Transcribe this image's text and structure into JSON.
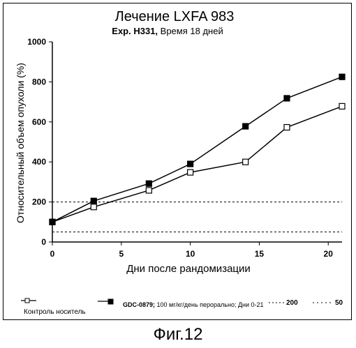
{
  "chart_data": {
    "type": "line",
    "title": "Лечение LXFA 983",
    "subtitle_bold": "Exp. H331,",
    "subtitle_rest": " Время 18 дней",
    "xlabel": "Дни после рандомизации",
    "ylabel": "Относительный объем опухоли (%)",
    "xlim": [
      0,
      21
    ],
    "ylim": [
      0,
      1000
    ],
    "xticks": [
      0,
      5,
      10,
      15,
      20
    ],
    "yticks": [
      0,
      200,
      400,
      600,
      800,
      1000
    ],
    "grid": false,
    "reference_lines": [
      {
        "y": 200,
        "label": "200"
      },
      {
        "y": 50,
        "label": "50"
      }
    ],
    "series": [
      {
        "name": "Контроль носитель",
        "marker": "open-square",
        "x": [
          0,
          3,
          7,
          10,
          14,
          17,
          21
        ],
        "y": [
          100,
          175,
          258,
          348,
          400,
          573,
          678
        ]
      },
      {
        "name": "GDC-0879",
        "name_detail": " 100 мг/кг/день перорально; Дни 0-21",
        "marker": "filled-square",
        "x": [
          0,
          3,
          7,
          10,
          14,
          17,
          21
        ],
        "y": [
          100,
          205,
          292,
          390,
          578,
          718,
          825
        ]
      }
    ]
  },
  "caption": "Фиг.12"
}
